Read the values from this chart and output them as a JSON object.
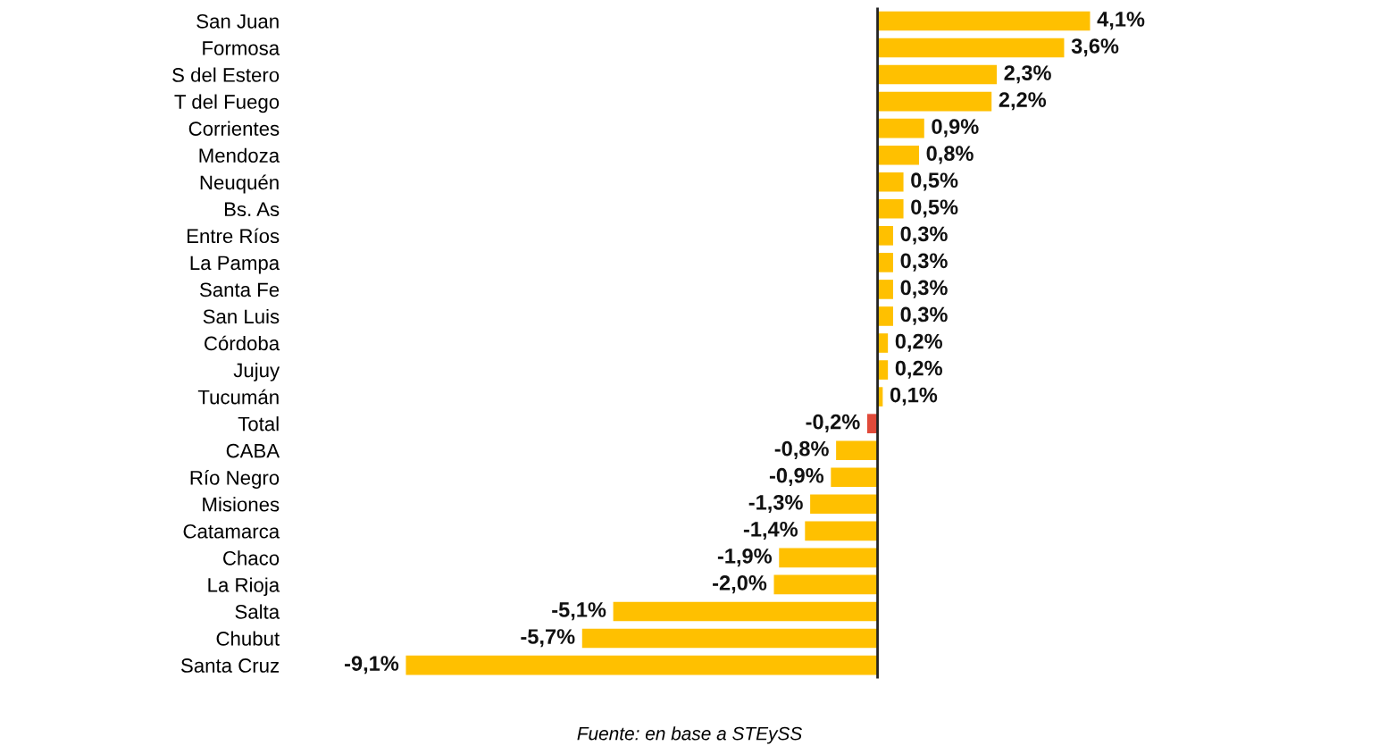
{
  "chart_data": {
    "type": "bar",
    "orientation": "horizontal",
    "categories": [
      "San Juan",
      "Formosa",
      "S del Estero",
      "T del Fuego",
      "Corrientes",
      "Mendoza",
      "Neuquén",
      "Bs. As",
      "Entre Ríos",
      "La Pampa",
      "Santa Fe",
      "San Luis",
      "Córdoba",
      "Jujuy",
      "Tucumán",
      "Total",
      "CABA",
      "Río Negro",
      "Misiones",
      "Catamarca",
      "Chaco",
      "La Rioja",
      "Salta",
      "Chubut",
      "Santa Cruz"
    ],
    "values": [
      4.1,
      3.6,
      2.3,
      2.2,
      0.9,
      0.8,
      0.5,
      0.5,
      0.3,
      0.3,
      0.3,
      0.3,
      0.2,
      0.2,
      0.1,
      -0.2,
      -0.8,
      -0.9,
      -1.3,
      -1.4,
      -1.9,
      -2.0,
      -5.1,
      -5.7,
      -9.1
    ],
    "colors": [
      "#ffc000",
      "#ffc000",
      "#ffc000",
      "#ffc000",
      "#ffc000",
      "#ffc000",
      "#ffc000",
      "#ffc000",
      "#ffc000",
      "#ffc000",
      "#ffc000",
      "#ffc000",
      "#ffc000",
      "#ffc000",
      "#ffc000",
      "#e04a3a",
      "#ffc000",
      "#ffc000",
      "#ffc000",
      "#ffc000",
      "#ffc000",
      "#ffc000",
      "#ffc000",
      "#ffc000",
      "#ffc000"
    ],
    "value_labels": [
      "4,1%",
      "3,6%",
      "2,3%",
      "2,2%",
      "0,9%",
      "0,8%",
      "0,5%",
      "0,5%",
      "0,3%",
      "0,3%",
      "0,3%",
      "0,3%",
      "0,2%",
      "0,2%",
      "0,1%",
      "-0,2%",
      "-0,8%",
      "-0,9%",
      "-1,3%",
      "-1,4%",
      "-1,9%",
      "-2,0%",
      "-5,1%",
      "-5,7%",
      "-9,1%"
    ],
    "annotations": [
      "Fuente: en base a STEySS"
    ],
    "grid": false,
    "legend": false
  }
}
